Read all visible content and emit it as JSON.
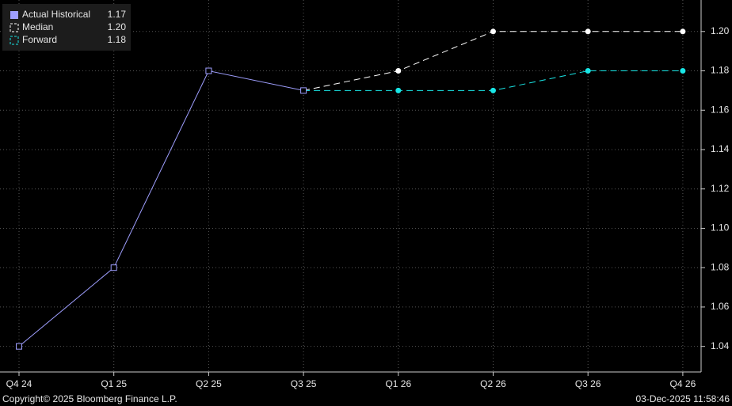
{
  "chart_data": {
    "type": "line",
    "categories": [
      "Q4 24",
      "Q1 25",
      "Q2 25",
      "Q3 25",
      "Q1 26",
      "Q2 26",
      "Q3 26",
      "Q4 26"
    ],
    "series": [
      {
        "name": "Actual Historical",
        "legend_value": "1.17",
        "color": "#9f9fff",
        "dashed": false,
        "marker": "square",
        "values": [
          1.04,
          1.08,
          1.18,
          1.17,
          null,
          null,
          null,
          null
        ]
      },
      {
        "name": "Median",
        "legend_value": "1.20",
        "color": "#ffffff",
        "dashed": true,
        "marker": "circle",
        "values": [
          null,
          null,
          null,
          1.17,
          1.18,
          1.2,
          1.2,
          1.2
        ]
      },
      {
        "name": "Forward",
        "legend_value": "1.18",
        "color": "#19e6e6",
        "dashed": true,
        "marker": "circle",
        "values": [
          null,
          null,
          null,
          1.17,
          1.17,
          1.17,
          1.18,
          1.18
        ]
      }
    ],
    "ylim": [
      1.027,
      1.216
    ],
    "yticks": [
      1.04,
      1.06,
      1.08,
      {
        "value": 1.1,
        "label": "1.10"
      },
      1.12,
      1.14,
      1.16,
      1.18,
      {
        "value": 1.2,
        "label": "1.20"
      }
    ],
    "grid": true,
    "legend": "top-left",
    "footer_left": "Copyright© 2025 Bloomberg Finance L.P.",
    "footer_right": "03-Dec-2025 11:58:46"
  }
}
